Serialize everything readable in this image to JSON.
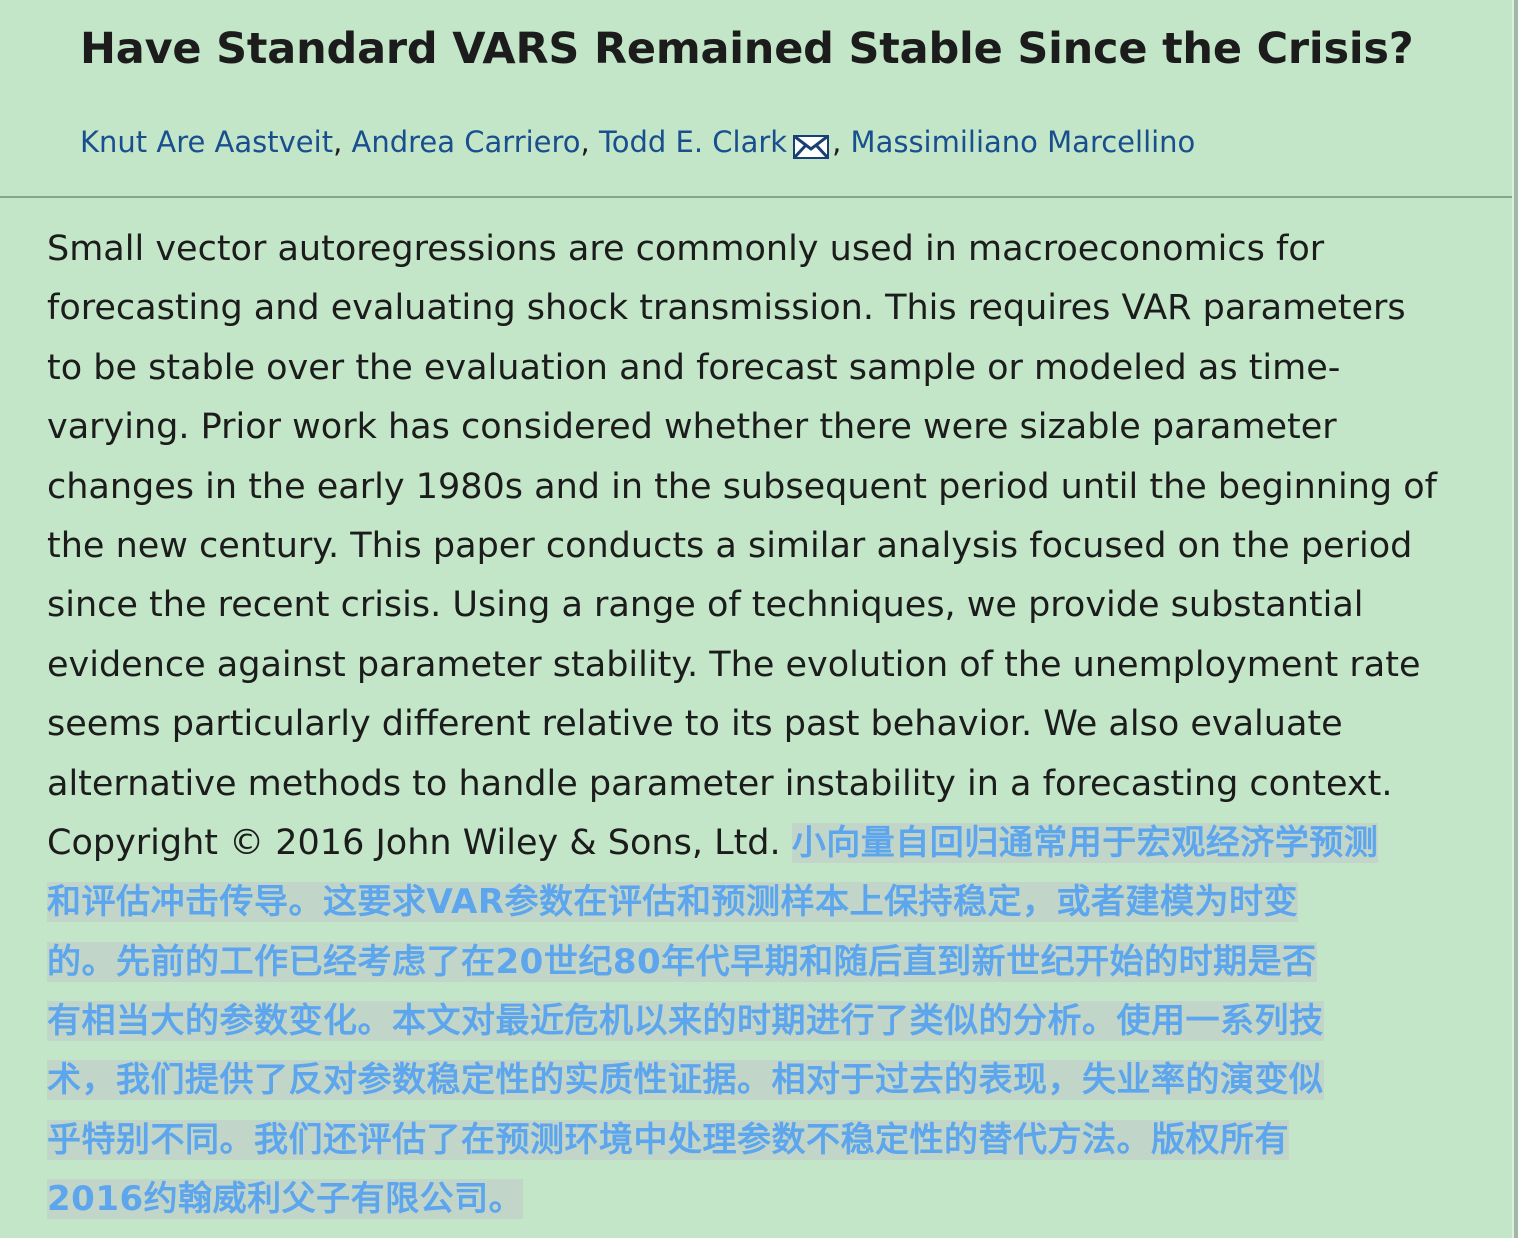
{
  "title": "Have Standard VARS Remained Stable Since the Crisis?",
  "authors": [
    {
      "name": "Knut Are Aastveit"
    },
    {
      "name": "Andrea Carriero"
    },
    {
      "name": "Todd E. Clark",
      "icon": "mail-icon"
    },
    {
      "name": "Massimiliano Marcellino"
    }
  ],
  "author_separator": ",",
  "abstract_lines": [
    "Small vector autoregressions are commonly used in macroeconomics for",
    "forecasting and evaluating shock transmission. This requires VAR parameters",
    "to be stable over the evaluation and forecast sample or modeled as time-",
    "varying. Prior work has considered whether there were sizable parameter",
    "changes in the early 1980s and in the subsequent period until the beginning of",
    "the new century. This paper conducts a similar analysis focused on the period",
    "since the recent crisis. Using a range of techniques, we provide substantial",
    "evidence against parameter stability. The evolution of the unemployment rate",
    "seems particularly different relative to its past behavior. We also evaluate",
    "alternative methods to handle parameter instability in a forecasting context."
  ],
  "copyright_text": "Copyright © 2016 John Wiley & Sons, Ltd. ",
  "translation_lines": [
    "小向量自回归通常用于宏观经济学预测",
    "和评估冲击传导。这要求VAR参数在评估和预测样本上保持稳定，或者建模为时变",
    "的。先前的工作已经考虑了在20世纪80年代早期和随后直到新世纪开始的时期是否",
    "有相当大的参数变化。本文对最近危机以来的时期进行了类似的分析。使用一系列技",
    "术，我们提供了反对参数稳定性的实质性证据。相对于过去的表现，失业率的演变似",
    "乎特别不同。我们还评估了在预测环境中处理参数不稳定性的替代方法。版权所有",
    "2016约翰威利父子有限公司。"
  ],
  "colors": {
    "background": "#c2e6c7",
    "author_link": "#1a4f8f",
    "translation_text": "#5da6ee",
    "translation_highlight": "#c1d6c8"
  }
}
